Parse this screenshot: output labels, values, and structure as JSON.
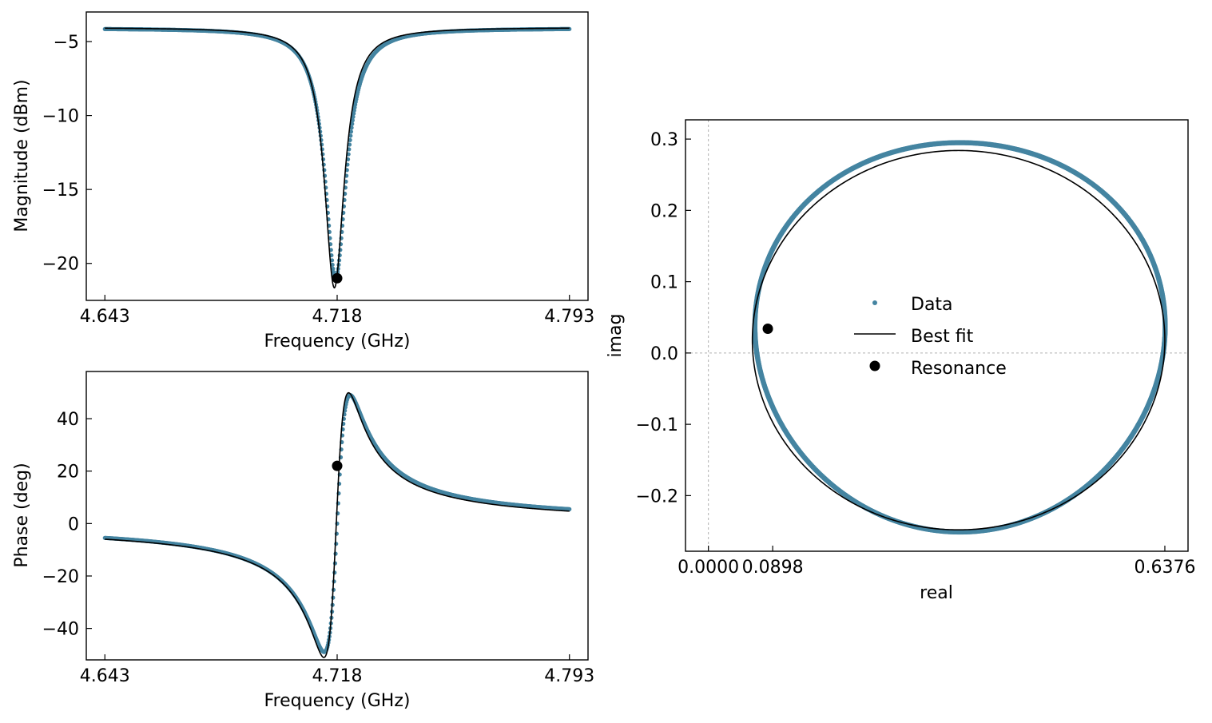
{
  "colors": {
    "data": "#4484a1",
    "fit": "#000000",
    "resonance": "#000000",
    "zero_line": "#b0b0b0"
  },
  "chart_data": [
    {
      "id": "magnitude",
      "type": "line",
      "xlabel": "Frequency (GHz)",
      "ylabel": "Magnitude (dBm)",
      "xlim": [
        4.637,
        4.799
      ],
      "ylim": [
        -22.5,
        -3.0
      ],
      "xticks": [
        4.643,
        4.718,
        4.793
      ],
      "xticklabels": [
        "4.643",
        "4.718",
        "4.793"
      ],
      "yticks": [
        -20,
        -15,
        -10,
        -5
      ],
      "yticklabels": [
        "−20",
        "−15",
        "−10",
        "−5"
      ],
      "model": {
        "f0": 4.7175,
        "width": 0.0042,
        "baseline": -4.1,
        "depth": -16.9
      },
      "series": [
        {
          "name": "Data",
          "style": "scatter",
          "x_range": [
            4.643,
            4.793
          ]
        },
        {
          "name": "Best fit",
          "style": "line",
          "x_range": [
            4.643,
            4.793
          ]
        }
      ],
      "resonance": {
        "x": 4.718,
        "y": -21.0
      }
    },
    {
      "id": "phase",
      "type": "line",
      "xlabel": "Frequency (GHz)",
      "ylabel": "Phase (deg)",
      "xlim": [
        4.637,
        4.799
      ],
      "ylim": [
        -52,
        58
      ],
      "xticks": [
        4.643,
        4.718,
        4.793
      ],
      "xticklabels": [
        "4.643",
        "4.718",
        "4.793"
      ],
      "yticks": [
        -40,
        -20,
        0,
        20,
        40
      ],
      "yticklabels": [
        "−40",
        "−20",
        "0",
        "20",
        "40"
      ],
      "model": {
        "f0": 4.718,
        "width": 0.0042,
        "amplitude": 49.0,
        "start": 0.0,
        "end": 0.0
      },
      "series": [
        {
          "name": "Data",
          "style": "scatter",
          "x_range": [
            4.643,
            4.793
          ]
        },
        {
          "name": "Best fit",
          "style": "line",
          "x_range": [
            4.643,
            4.793
          ]
        }
      ],
      "resonance": {
        "x": 4.718,
        "y": 22.0
      }
    },
    {
      "id": "complex",
      "type": "scatter",
      "xlabel": "real",
      "ylabel": "imag",
      "xlim": [
        -0.032,
        0.67
      ],
      "ylim": [
        -0.278,
        0.327
      ],
      "xticks": [
        0.0,
        0.0898,
        0.6376
      ],
      "xticklabels": [
        "0.0000",
        "0.0898",
        "0.6376"
      ],
      "yticks": [
        -0.2,
        -0.1,
        0.0,
        0.1,
        0.2,
        0.3
      ],
      "yticklabels": [
        "−0.2",
        "−0.1",
        "0.0",
        "0.1",
        "0.2",
        "0.3"
      ],
      "zero_lines": true,
      "data_circle": {
        "center": [
          0.3515,
          0.026
        ],
        "rx": 0.2863,
        "ry": 0.273
      },
      "fit_circle": {
        "center": [
          0.3495,
          0.018
        ],
        "rx": 0.2881,
        "ry": 0.266
      },
      "resonance": {
        "x": 0.083,
        "y": 0.034
      },
      "legend": {
        "location": "center",
        "entries": [
          {
            "label": "Data",
            "marker": "dot"
          },
          {
            "label": "Best fit",
            "marker": "line"
          },
          {
            "label": "Resonance",
            "marker": "big-dot"
          }
        ]
      }
    }
  ]
}
